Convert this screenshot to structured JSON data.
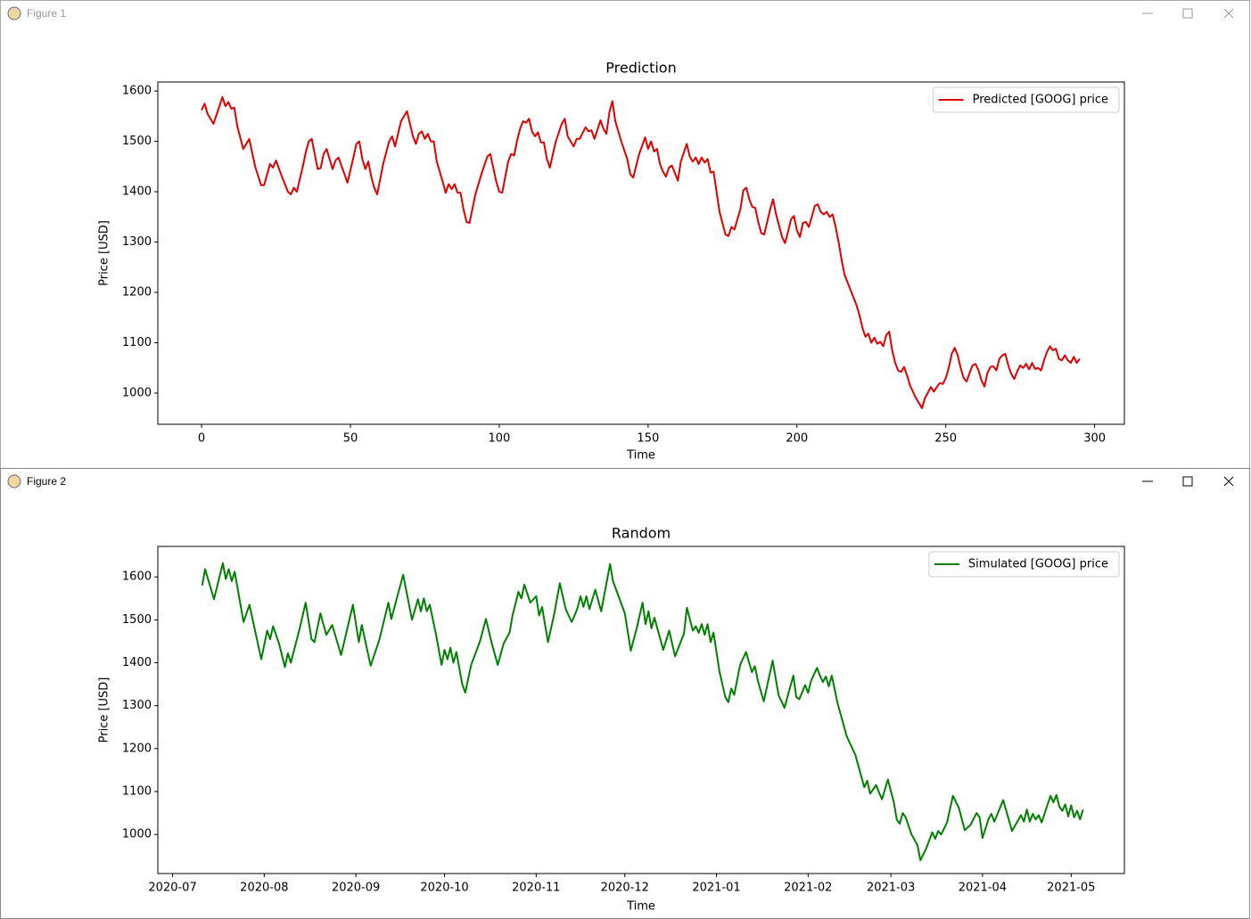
{
  "windows": [
    {
      "title": "Figure 1"
    },
    {
      "title": "Figure 2"
    }
  ],
  "chart_data": [
    {
      "type": "line",
      "title": "Prediction",
      "x_label": "Time",
      "y_label": "Price [USD]",
      "xlim": [
        -14.7,
        310
      ],
      "ylim": [
        938,
        1618
      ],
      "xticks": [
        0,
        50,
        100,
        150,
        200,
        250,
        300
      ],
      "yticks": [
        1000,
        1100,
        1200,
        1300,
        1400,
        1500,
        1600
      ],
      "legend": "upper right",
      "x": [
        0,
        1,
        2,
        4,
        6,
        7,
        8,
        9,
        10,
        11,
        12,
        14,
        16,
        18,
        20,
        21,
        23,
        24,
        25,
        27,
        29,
        30,
        31,
        32,
        34,
        35,
        36,
        37,
        39,
        40,
        41,
        42,
        44,
        45,
        46,
        48,
        49,
        51,
        52,
        53,
        54,
        55,
        56,
        57,
        58,
        59,
        61,
        63,
        64,
        65,
        67,
        69,
        71,
        72,
        73,
        74,
        75,
        76,
        77,
        78,
        79,
        81,
        82,
        83,
        84,
        85,
        86,
        87,
        88,
        89,
        90,
        92,
        94,
        96,
        97,
        99,
        100,
        101,
        103,
        104,
        105,
        106,
        107,
        108,
        109,
        110,
        111,
        112,
        113,
        114,
        115,
        116,
        117,
        119,
        121,
        122,
        123,
        125,
        126,
        127,
        129,
        130,
        131,
        132,
        134,
        135,
        136,
        137,
        138,
        139,
        141,
        143,
        144,
        145,
        147,
        149,
        150,
        151,
        152,
        153,
        154,
        155,
        156,
        157,
        158,
        160,
        161,
        163,
        164,
        165,
        166,
        167,
        168,
        169,
        170,
        171,
        172,
        173,
        174,
        176,
        177,
        178,
        179,
        181,
        182,
        183,
        184,
        185,
        186,
        187,
        188,
        189,
        191,
        192,
        193,
        195,
        196,
        197,
        198,
        199,
        200,
        201,
        202,
        203,
        204,
        205,
        206,
        207,
        208,
        209,
        210,
        211,
        212,
        213,
        214,
        215,
        216,
        218,
        220,
        221,
        222,
        223,
        224,
        225,
        226,
        227,
        228,
        229,
        230,
        231,
        232,
        233,
        234,
        235,
        236,
        237,
        238,
        240,
        241,
        242,
        243,
        245,
        246,
        247,
        248,
        249,
        250,
        251,
        252,
        253,
        254,
        255,
        256,
        257,
        258,
        259,
        260,
        261,
        262,
        263,
        264,
        265,
        266,
        267,
        268,
        269,
        270,
        271,
        272,
        273,
        274,
        275,
        276,
        277,
        278,
        279,
        280,
        281,
        282,
        283,
        284,
        285,
        286,
        287,
        288,
        289,
        290,
        291,
        292,
        293,
        294,
        295
      ],
      "series": [
        {
          "name": "Predicted [GOOG] price",
          "color": "#e00000",
          "values": [
            1562,
            1575,
            1555,
            1535,
            1570,
            1588,
            1570,
            1578,
            1565,
            1567,
            1530,
            1485,
            1505,
            1450,
            1413,
            1413,
            1455,
            1448,
            1462,
            1430,
            1400,
            1395,
            1408,
            1400,
            1450,
            1478,
            1500,
            1505,
            1445,
            1447,
            1475,
            1485,
            1445,
            1462,
            1468,
            1435,
            1418,
            1468,
            1495,
            1500,
            1465,
            1445,
            1460,
            1430,
            1408,
            1395,
            1455,
            1500,
            1510,
            1490,
            1540,
            1560,
            1510,
            1495,
            1515,
            1520,
            1505,
            1515,
            1500,
            1500,
            1460,
            1420,
            1398,
            1415,
            1405,
            1415,
            1398,
            1398,
            1365,
            1340,
            1338,
            1395,
            1435,
            1470,
            1475,
            1420,
            1400,
            1398,
            1460,
            1475,
            1472,
            1502,
            1525,
            1540,
            1537,
            1545,
            1520,
            1510,
            1518,
            1498,
            1498,
            1465,
            1448,
            1500,
            1535,
            1545,
            1510,
            1490,
            1505,
            1505,
            1528,
            1520,
            1522,
            1505,
            1542,
            1525,
            1515,
            1558,
            1580,
            1540,
            1500,
            1465,
            1435,
            1428,
            1475,
            1508,
            1485,
            1500,
            1480,
            1485,
            1455,
            1440,
            1430,
            1448,
            1452,
            1422,
            1460,
            1495,
            1470,
            1460,
            1468,
            1455,
            1468,
            1458,
            1465,
            1438,
            1440,
            1400,
            1360,
            1315,
            1312,
            1330,
            1325,
            1365,
            1403,
            1408,
            1385,
            1370,
            1368,
            1340,
            1318,
            1315,
            1365,
            1385,
            1355,
            1310,
            1298,
            1320,
            1345,
            1352,
            1323,
            1310,
            1338,
            1340,
            1330,
            1350,
            1372,
            1375,
            1360,
            1355,
            1360,
            1350,
            1355,
            1330,
            1300,
            1265,
            1235,
            1205,
            1175,
            1155,
            1130,
            1112,
            1118,
            1100,
            1110,
            1098,
            1102,
            1093,
            1115,
            1122,
            1085,
            1060,
            1045,
            1042,
            1052,
            1035,
            1015,
            990,
            980,
            970,
            990,
            1012,
            1003,
            1012,
            1020,
            1018,
            1030,
            1050,
            1078,
            1090,
            1075,
            1050,
            1030,
            1023,
            1040,
            1055,
            1058,
            1045,
            1025,
            1013,
            1040,
            1052,
            1053,
            1045,
            1068,
            1075,
            1078,
            1055,
            1038,
            1028,
            1043,
            1055,
            1050,
            1058,
            1047,
            1060,
            1048,
            1050,
            1045,
            1065,
            1082,
            1093,
            1085,
            1088,
            1068,
            1065,
            1075,
            1065,
            1060,
            1072,
            1060,
            1068
          ]
        }
      ]
    },
    {
      "type": "line",
      "title": "Random",
      "x_label": "Time",
      "y_label": "Price [USD]",
      "xlim": [
        "2020-06-26",
        "2021-05-19"
      ],
      "ylim": [
        909,
        1671
      ],
      "xticks": [
        {
          "value": "2020-07-01",
          "label": "2020-07"
        },
        {
          "value": "2020-08-01",
          "label": "2020-08"
        },
        {
          "value": "2020-09-01",
          "label": "2020-09"
        },
        {
          "value": "2020-10-01",
          "label": "2020-10"
        },
        {
          "value": "2020-11-01",
          "label": "2020-11"
        },
        {
          "value": "2020-12-01",
          "label": "2020-12"
        },
        {
          "value": "2021-01-01",
          "label": "2021-01"
        },
        {
          "value": "2021-02-01",
          "label": "2021-02"
        },
        {
          "value": "2021-03-01",
          "label": "2021-03"
        },
        {
          "value": "2021-04-01",
          "label": "2021-04"
        },
        {
          "value": "2021-05-01",
          "label": "2021-05"
        }
      ],
      "yticks": [
        1000,
        1100,
        1200,
        1300,
        1400,
        1500,
        1600
      ],
      "legend": "upper right",
      "x": [
        "2020-07-11",
        "2020-07-12",
        "2020-07-15",
        "2020-07-18",
        "2020-07-19",
        "2020-07-20",
        "2020-07-21",
        "2020-07-22",
        "2020-07-25",
        "2020-07-27",
        "2020-07-31",
        "2020-08-02",
        "2020-08-03",
        "2020-08-04",
        "2020-08-06",
        "2020-08-08",
        "2020-08-09",
        "2020-08-10",
        "2020-08-13",
        "2020-08-15",
        "2020-08-17",
        "2020-08-18",
        "2020-08-20",
        "2020-08-22",
        "2020-08-24",
        "2020-08-27",
        "2020-08-31",
        "2020-09-02",
        "2020-09-03",
        "2020-09-06",
        "2020-09-09",
        "2020-09-12",
        "2020-09-13",
        "2020-09-17",
        "2020-09-20",
        "2020-09-22",
        "2020-09-23",
        "2020-09-24",
        "2020-09-25",
        "2020-09-26",
        "2020-09-28",
        "2020-09-30",
        "2020-10-01",
        "2020-10-02",
        "2020-10-03",
        "2020-10-04",
        "2020-10-05",
        "2020-10-07",
        "2020-10-08",
        "2020-10-10",
        "2020-10-13",
        "2020-10-15",
        "2020-10-17",
        "2020-10-19",
        "2020-10-21",
        "2020-10-23",
        "2020-10-24",
        "2020-10-26",
        "2020-10-27",
        "2020-10-28",
        "2020-10-30",
        "2020-11-01",
        "2020-11-02",
        "2020-11-03",
        "2020-11-05",
        "2020-11-07",
        "2020-11-09",
        "2020-11-11",
        "2020-11-13",
        "2020-11-14",
        "2020-11-15",
        "2020-11-16",
        "2020-11-17",
        "2020-11-18",
        "2020-11-19",
        "2020-11-21",
        "2020-11-23",
        "2020-11-26",
        "2020-11-27",
        "2020-12-01",
        "2020-12-03",
        "2020-12-05",
        "2020-12-07",
        "2020-12-08",
        "2020-12-09",
        "2020-12-10",
        "2020-12-11",
        "2020-12-14",
        "2020-12-16",
        "2020-12-18",
        "2020-12-21",
        "2020-12-22",
        "2020-12-24",
        "2020-12-25",
        "2020-12-26",
        "2020-12-27",
        "2020-12-28",
        "2020-12-29",
        "2020-12-30",
        "2020-12-31",
        "2021-01-02",
        "2021-01-04",
        "2021-01-05",
        "2021-01-06",
        "2021-01-07",
        "2021-01-09",
        "2021-01-11",
        "2021-01-13",
        "2021-01-14",
        "2021-01-15",
        "2021-01-17",
        "2021-01-20",
        "2021-01-22",
        "2021-01-24",
        "2021-01-27",
        "2021-01-28",
        "2021-01-29",
        "2021-01-31",
        "2021-02-01",
        "2021-02-02",
        "2021-02-04",
        "2021-02-05",
        "2021-02-06",
        "2021-02-07",
        "2021-02-08",
        "2021-02-09",
        "2021-02-11",
        "2021-02-14",
        "2021-02-17",
        "2021-02-20",
        "2021-02-21",
        "2021-02-22",
        "2021-02-24",
        "2021-02-25",
        "2021-02-26",
        "2021-02-28",
        "2021-03-02",
        "2021-03-03",
        "2021-03-04",
        "2021-03-05",
        "2021-03-06",
        "2021-03-08",
        "2021-03-10",
        "2021-03-11",
        "2021-03-13",
        "2021-03-15",
        "2021-03-16",
        "2021-03-17",
        "2021-03-18",
        "2021-03-20",
        "2021-03-22",
        "2021-03-24",
        "2021-03-26",
        "2021-03-28",
        "2021-03-30",
        "2021-03-31",
        "2021-04-01",
        "2021-04-03",
        "2021-04-04",
        "2021-04-05",
        "2021-04-08",
        "2021-04-11",
        "2021-04-14",
        "2021-04-15",
        "2021-04-16",
        "2021-04-17",
        "2021-04-18",
        "2021-04-19",
        "2021-04-20",
        "2021-04-21",
        "2021-04-24",
        "2021-04-25",
        "2021-04-26",
        "2021-04-27",
        "2021-04-28",
        "2021-04-29",
        "2021-04-30",
        "2021-05-01",
        "2021-05-02",
        "2021-05-03",
        "2021-05-04",
        "2021-05-05"
      ],
      "series": [
        {
          "name": "Simulated [GOOG] price",
          "color": "#008000",
          "values": [
            1580,
            1618,
            1548,
            1632,
            1595,
            1618,
            1590,
            1612,
            1495,
            1535,
            1408,
            1475,
            1455,
            1485,
            1445,
            1390,
            1422,
            1400,
            1480,
            1540,
            1455,
            1448,
            1515,
            1465,
            1488,
            1418,
            1535,
            1448,
            1488,
            1393,
            1455,
            1540,
            1502,
            1605,
            1500,
            1548,
            1520,
            1550,
            1520,
            1535,
            1470,
            1395,
            1430,
            1408,
            1435,
            1400,
            1425,
            1350,
            1330,
            1395,
            1450,
            1502,
            1445,
            1395,
            1445,
            1470,
            1510,
            1565,
            1550,
            1582,
            1540,
            1555,
            1510,
            1530,
            1448,
            1510,
            1585,
            1525,
            1495,
            1510,
            1528,
            1555,
            1530,
            1555,
            1525,
            1570,
            1520,
            1630,
            1590,
            1515,
            1428,
            1480,
            1540,
            1490,
            1520,
            1480,
            1505,
            1430,
            1475,
            1415,
            1468,
            1528,
            1475,
            1485,
            1470,
            1490,
            1465,
            1490,
            1448,
            1470,
            1380,
            1320,
            1308,
            1340,
            1325,
            1395,
            1425,
            1378,
            1392,
            1358,
            1310,
            1405,
            1325,
            1295,
            1370,
            1320,
            1315,
            1348,
            1330,
            1358,
            1388,
            1370,
            1355,
            1368,
            1345,
            1370,
            1305,
            1230,
            1185,
            1110,
            1125,
            1095,
            1115,
            1098,
            1082,
            1128,
            1075,
            1035,
            1025,
            1050,
            1040,
            1000,
            975,
            940,
            968,
            1005,
            990,
            1008,
            1000,
            1028,
            1090,
            1062,
            1010,
            1023,
            1050,
            1040,
            992,
            1035,
            1048,
            1030,
            1080,
            1008,
            1045,
            1030,
            1058,
            1030,
            1048,
            1035,
            1045,
            1028,
            1090,
            1075,
            1092,
            1065,
            1055,
            1070,
            1042,
            1068,
            1040,
            1055,
            1035,
            1058
          ]
        }
      ]
    }
  ]
}
